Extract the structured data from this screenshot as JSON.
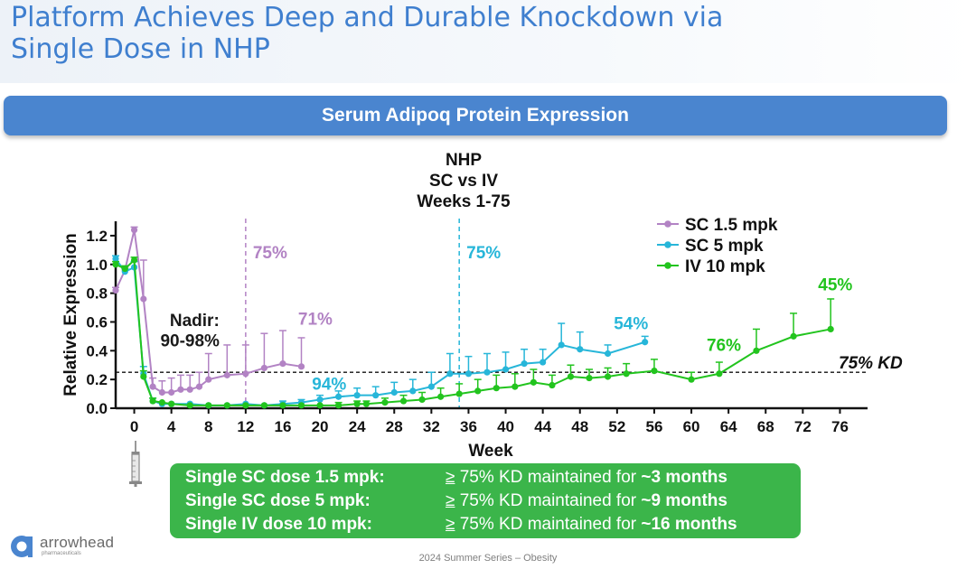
{
  "page": {
    "title_line1": "Platform Achieves Deep and Durable Knockdown via",
    "title_line2": "Single Dose in NHP",
    "banner": "Serum Adipoq Protein Expression",
    "footer": "2024 Summer Series – Obesity",
    "logo_name": "arrowhead",
    "logo_sub": "pharmaceuticals",
    "logo_icon": "arrowhead-logo-icon",
    "dosing_icon": "syringe-icon"
  },
  "summary": {
    "rows": [
      {
        "label": "Single SC dose 1.5 mpk:",
        "ge": "≥",
        "text": " 75% KD maintained for ",
        "duration": "~3 months"
      },
      {
        "label": "Single SC dose 5 mpk:",
        "ge": "≥",
        "text": " 75% KD maintained for ",
        "duration": "~9 months"
      },
      {
        "label": "Single IV dose 10 mpk:",
        "ge": "≥",
        "text": " 75% KD maintained for ",
        "duration": "~16 months"
      }
    ]
  },
  "chart_data": {
    "type": "line",
    "title": [
      "NHP",
      "SC vs IV",
      "Weeks 1-75"
    ],
    "xlabel": "Week",
    "ylabel": "Relative Expression",
    "xlim": [
      -2,
      78
    ],
    "ylim": [
      0,
      1.3
    ],
    "xticks": [
      0,
      4,
      8,
      12,
      16,
      20,
      24,
      28,
      32,
      36,
      40,
      44,
      48,
      52,
      56,
      60,
      64,
      68,
      72,
      76
    ],
    "yticks": [
      0.0,
      0.2,
      0.4,
      0.6,
      0.8,
      1.0,
      1.2
    ],
    "ytick_labels": [
      "0.0",
      "0.2",
      "0.4",
      "0.6",
      "0.8",
      "1.0",
      "1.2"
    ],
    "grid": false,
    "legend_position": "top-right",
    "reference_line": {
      "y": 0.25,
      "label": "75% KD",
      "style": "dashed"
    },
    "markers": [
      {
        "x": 12,
        "label": "75%",
        "color": "#b283c4"
      },
      {
        "x": 35,
        "label": "75%",
        "color": "#27b6d9"
      }
    ],
    "annotations": [
      {
        "text": "Nadir:",
        "x": 6.5,
        "y": 0.57,
        "color": "#1a1a1a"
      },
      {
        "text": "90-98%",
        "x": 6,
        "y": 0.43,
        "color": "#1a1a1a"
      },
      {
        "text": "71%",
        "x": 19.5,
        "y": 0.58,
        "color": "#b283c4"
      },
      {
        "text": "94%",
        "x": 21,
        "y": 0.13,
        "color": "#27b6d9"
      },
      {
        "text": "54%",
        "x": 53.5,
        "y": 0.55,
        "color": "#27b6d9"
      },
      {
        "text": "76%",
        "x": 63.5,
        "y": 0.4,
        "color": "#22c41e"
      },
      {
        "text": "45%",
        "x": 75.5,
        "y": 0.82,
        "color": "#22c41e"
      }
    ],
    "series": [
      {
        "name": "SC 1.5 mpk",
        "color": "#b283c4",
        "x": [
          -2,
          -1,
          0,
          1,
          2,
          3,
          4,
          5,
          6,
          7,
          8,
          10,
          12,
          14,
          16,
          18
        ],
        "y": [
          0.82,
          0.96,
          1.24,
          0.76,
          0.15,
          0.11,
          0.11,
          0.13,
          0.13,
          0.15,
          0.2,
          0.23,
          0.24,
          0.28,
          0.31,
          0.29
        ],
        "err": [
          0.02,
          0.02,
          0.02,
          0.27,
          0.06,
          0.08,
          0.1,
          0.1,
          0.1,
          0.1,
          0.18,
          0.21,
          0.2,
          0.24,
          0.23,
          0.2
        ]
      },
      {
        "name": "SC 5 mpk",
        "color": "#27b6d9",
        "x": [
          -2,
          -1,
          0,
          1,
          2,
          3,
          4,
          6,
          8,
          10,
          12,
          14,
          16,
          18,
          20,
          22,
          24,
          26,
          28,
          30,
          32,
          34,
          36,
          38,
          40,
          42,
          44,
          46,
          48,
          51,
          55
        ],
        "y": [
          1.04,
          0.95,
          0.98,
          0.24,
          0.05,
          0.03,
          0.03,
          0.03,
          0.02,
          0.02,
          0.03,
          0.02,
          0.03,
          0.04,
          0.06,
          0.08,
          0.09,
          0.09,
          0.11,
          0.12,
          0.15,
          0.24,
          0.24,
          0.25,
          0.27,
          0.31,
          0.32,
          0.44,
          0.41,
          0.38,
          0.46
        ],
        "err": [
          0.02,
          0.02,
          0.04,
          0.05,
          0.02,
          0.01,
          0.01,
          0.01,
          0.01,
          0.01,
          0.01,
          0.01,
          0.02,
          0.02,
          0.03,
          0.04,
          0.05,
          0.06,
          0.07,
          0.08,
          0.1,
          0.14,
          0.12,
          0.13,
          0.12,
          0.1,
          0.09,
          0.15,
          0.12,
          0.06,
          0.04
        ]
      },
      {
        "name": "IV 10 mpk",
        "color": "#22c41e",
        "x": [
          -2,
          -1,
          0,
          1,
          2,
          3,
          4,
          6,
          8,
          10,
          12,
          14,
          16,
          18,
          20,
          22,
          24,
          25,
          27,
          29,
          31,
          33,
          35,
          37,
          39,
          41,
          43,
          45,
          47,
          49,
          51,
          53,
          56,
          60,
          63,
          67,
          71,
          75
        ],
        "y": [
          1.0,
          0.97,
          1.03,
          0.22,
          0.05,
          0.04,
          0.03,
          0.02,
          0.02,
          0.02,
          0.02,
          0.02,
          0.02,
          0.02,
          0.02,
          0.02,
          0.03,
          0.03,
          0.04,
          0.05,
          0.06,
          0.08,
          0.1,
          0.12,
          0.14,
          0.15,
          0.18,
          0.16,
          0.22,
          0.21,
          0.22,
          0.24,
          0.26,
          0.2,
          0.24,
          0.4,
          0.5,
          0.55
        ],
        "err": [
          0.02,
          0.02,
          0.02,
          0.04,
          0.02,
          0.01,
          0.01,
          0.01,
          0.01,
          0.01,
          0.01,
          0.01,
          0.01,
          0.01,
          0.01,
          0.02,
          0.02,
          0.02,
          0.03,
          0.04,
          0.05,
          0.06,
          0.07,
          0.08,
          0.09,
          0.09,
          0.09,
          0.07,
          0.08,
          0.06,
          0.06,
          0.07,
          0.08,
          0.05,
          0.08,
          0.15,
          0.16,
          0.21
        ]
      }
    ]
  }
}
